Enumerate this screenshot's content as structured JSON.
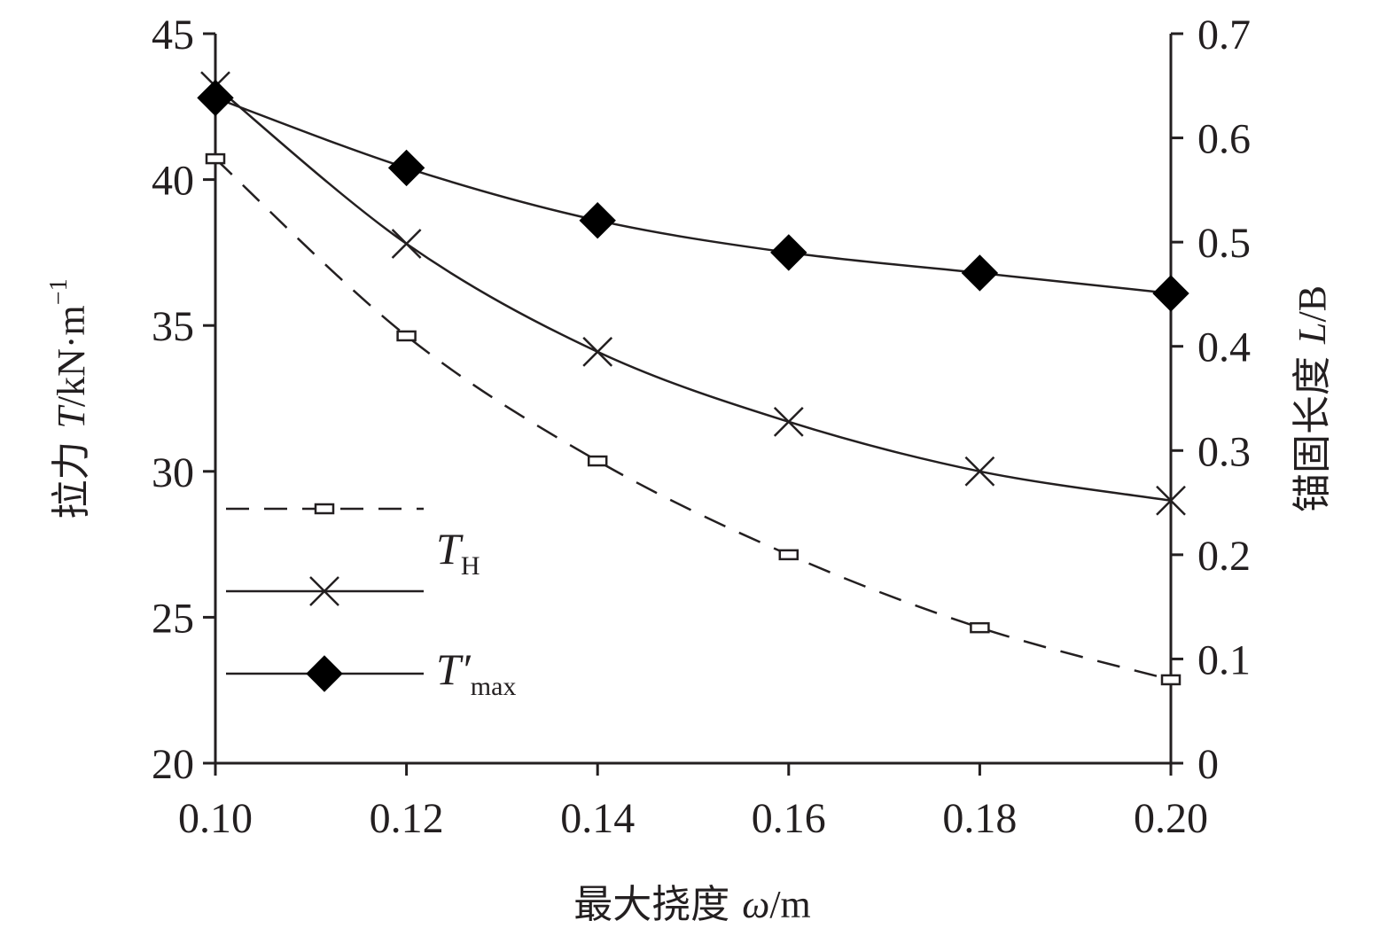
{
  "chart_data": {
    "type": "line",
    "title": "",
    "x": [
      0.1,
      0.12,
      0.14,
      0.16,
      0.18,
      0.2
    ],
    "x_tick_labels": [
      "0.10",
      "0.12",
      "0.14",
      "0.16",
      "0.18",
      "0.20"
    ],
    "xlim": [
      0.1,
      0.2
    ],
    "ylim_left": [
      20,
      45
    ],
    "y_left_ticks": [
      20,
      25,
      30,
      35,
      40,
      45
    ],
    "ylim_right": [
      0,
      0.7
    ],
    "y_right_ticks": [
      0,
      0.1,
      0.2,
      0.3,
      0.4,
      0.5,
      0.6,
      0.7
    ],
    "y_right_tick_labels": [
      "0",
      "0.1",
      "0.2",
      "0.3",
      "0.4",
      "0.5",
      "0.6",
      "0.7"
    ],
    "xlabel": {
      "prefix": "最大挠度 ",
      "var": "ω",
      "suffix": "/m"
    },
    "ylabel_left": {
      "prefix": "拉力 ",
      "var": "T",
      "suffix": "/kN·m",
      "sup": "−1"
    },
    "ylabel_right": {
      "prefix": "锚固长度 ",
      "var": "L",
      "suffix": "/B"
    },
    "grid": false,
    "legend_position": "left",
    "series": [
      {
        "axis": "right",
        "marker": "rectangle",
        "line_style": "dashed",
        "values": [
          0.58,
          0.41,
          0.29,
          0.2,
          0.13,
          0.08
        ]
      },
      {
        "name": "T",
        "name_sub": "H",
        "axis": "left",
        "marker": "cross",
        "line_style": "solid",
        "values": [
          43.2,
          37.8,
          34.1,
          31.7,
          30.0,
          29.0
        ]
      },
      {
        "name": "T′",
        "name_sub": "max",
        "axis": "left",
        "marker": "diamond",
        "line_style": "solid",
        "values": [
          42.8,
          40.4,
          38.6,
          37.5,
          36.8,
          36.1
        ]
      }
    ]
  }
}
